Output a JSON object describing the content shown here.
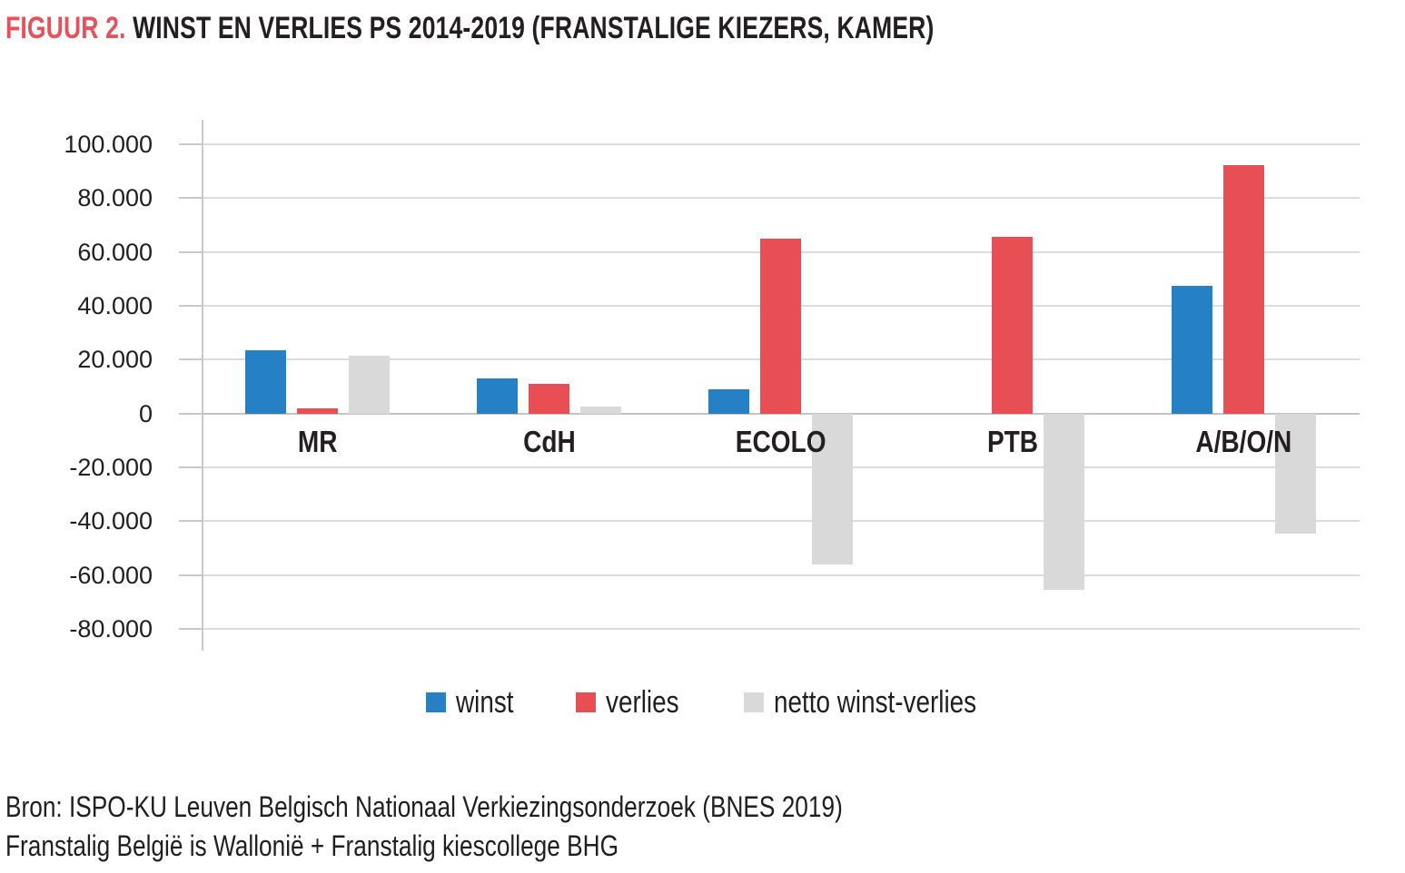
{
  "title": {
    "label": "FIGUUR 2.",
    "text": "WINST EN VERLIES PS 2014-2019 (FRANSTALIGE KIEZERS, KAMER)",
    "label_color": "#E8505A"
  },
  "chart_data": {
    "type": "bar",
    "categories": [
      "MR",
      "CdH",
      "ECOLO",
      "PTB",
      "A/B/O/N"
    ],
    "series": [
      {
        "name": "winst",
        "color": "#2680C5",
        "values": [
          23500,
          13000,
          9000,
          0,
          47500
        ]
      },
      {
        "name": "verlies",
        "color": "#E84F55",
        "values": [
          2000,
          11000,
          65000,
          65500,
          92000
        ]
      },
      {
        "name": "netto winst-verlies",
        "color": "#D9D9D9",
        "values": [
          21500,
          2500,
          -56000,
          -65500,
          -44500
        ]
      }
    ],
    "title": "WINST EN VERLIES PS 2014-2019 (FRANSTALIGE KIEZERS, KAMER)",
    "xlabel": "",
    "ylabel": "",
    "ylim": [
      -80000,
      100000
    ],
    "ytick_step": 20000,
    "ytick_labels": [
      "100.000",
      "80.000",
      "60.000",
      "40.000",
      "20.000",
      "0",
      "-20.000",
      "-40.000",
      "-60.000",
      "-80.000"
    ],
    "number_format": "thousands-dot",
    "grid": "horizontal",
    "legend_position": "bottom",
    "axis_colors": {
      "gridline": "#DCDCDC",
      "zero_line": "#C4C4C4",
      "axis_line": "#C9C9C9",
      "tick": "#C9C9C9",
      "label": "#1F1F1F"
    }
  },
  "source": {
    "line1": "Bron: ISPO-KU Leuven Belgisch Nationaal Verkiezingsonderzoek (BNES 2019)",
    "line2": "Franstalig België is Wallonië + Franstalig kiescollege BHG"
  }
}
